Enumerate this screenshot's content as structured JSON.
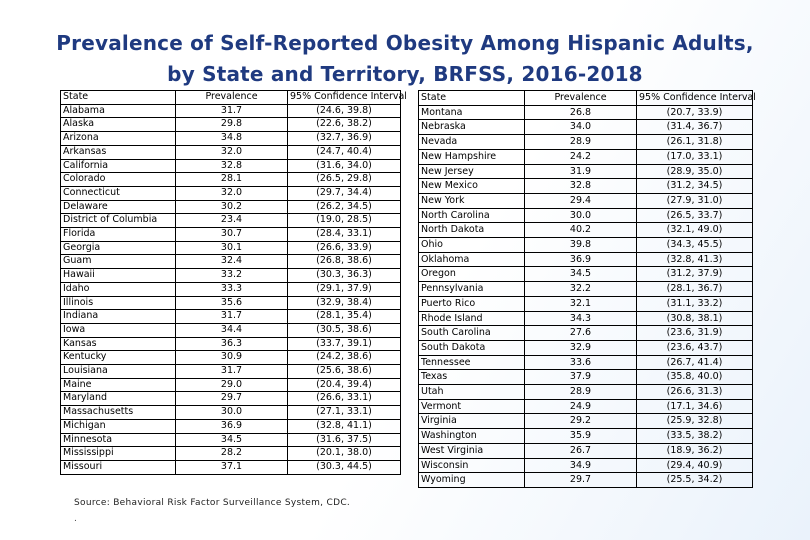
{
  "title": {
    "line1": "Prevalence of Self-Reported Obesity Among Hispanic Adults,",
    "line2": "by State and Territory, BRFSS, 2016-2018"
  },
  "columns": {
    "state": "State",
    "prevalence": "Prevalence",
    "ci": "95% Confidence Interval"
  },
  "left_rows": [
    {
      "state": "Alabama",
      "prevalence": "31.7",
      "ci": "(24.6, 39.8)"
    },
    {
      "state": "Alaska",
      "prevalence": "29.8",
      "ci": "(22.6, 38.2)"
    },
    {
      "state": "Arizona",
      "prevalence": "34.8",
      "ci": "(32.7, 36.9)"
    },
    {
      "state": "Arkansas",
      "prevalence": "32.0",
      "ci": "(24.7, 40.4)"
    },
    {
      "state": "California",
      "prevalence": "32.8",
      "ci": "(31.6, 34.0)"
    },
    {
      "state": "Colorado",
      "prevalence": "28.1",
      "ci": "(26.5, 29.8)"
    },
    {
      "state": "Connecticut",
      "prevalence": "32.0",
      "ci": "(29.7, 34.4)"
    },
    {
      "state": "Delaware",
      "prevalence": "30.2",
      "ci": "(26.2, 34.5)"
    },
    {
      "state": "District of Columbia",
      "prevalence": "23.4",
      "ci": "(19.0, 28.5)"
    },
    {
      "state": "Florida",
      "prevalence": "30.7",
      "ci": "(28.4, 33.1)"
    },
    {
      "state": "Georgia",
      "prevalence": "30.1",
      "ci": "(26.6, 33.9)"
    },
    {
      "state": "Guam",
      "prevalence": "32.4",
      "ci": "(26.8, 38.6)"
    },
    {
      "state": "Hawaii",
      "prevalence": "33.2",
      "ci": "(30.3, 36.3)"
    },
    {
      "state": "Idaho",
      "prevalence": "33.3",
      "ci": "(29.1, 37.9)"
    },
    {
      "state": "Illinois",
      "prevalence": "35.6",
      "ci": "(32.9, 38.4)"
    },
    {
      "state": "Indiana",
      "prevalence": "31.7",
      "ci": "(28.1, 35.4)"
    },
    {
      "state": "Iowa",
      "prevalence": "34.4",
      "ci": "(30.5, 38.6)"
    },
    {
      "state": "Kansas",
      "prevalence": "36.3",
      "ci": "(33.7, 39.1)"
    },
    {
      "state": "Kentucky",
      "prevalence": "30.9",
      "ci": "(24.2, 38.6)"
    },
    {
      "state": "Louisiana",
      "prevalence": "31.7",
      "ci": "(25.6, 38.6)"
    },
    {
      "state": "Maine",
      "prevalence": "29.0",
      "ci": "(20.4, 39.4)"
    },
    {
      "state": "Maryland",
      "prevalence": "29.7",
      "ci": "(26.6, 33.1)"
    },
    {
      "state": "Massachusetts",
      "prevalence": "30.0",
      "ci": "(27.1, 33.1)"
    },
    {
      "state": "Michigan",
      "prevalence": "36.9",
      "ci": "(32.8, 41.1)"
    },
    {
      "state": "Minnesota",
      "prevalence": "34.5",
      "ci": "(31.6, 37.5)"
    },
    {
      "state": "Mississippi",
      "prevalence": "28.2",
      "ci": "(20.1, 38.0)"
    },
    {
      "state": "Missouri",
      "prevalence": "37.1",
      "ci": "(30.3, 44.5)"
    }
  ],
  "right_rows": [
    {
      "state": "Montana",
      "prevalence": "26.8",
      "ci": "(20.7, 33.9)"
    },
    {
      "state": "Nebraska",
      "prevalence": "34.0",
      "ci": "(31.4, 36.7)"
    },
    {
      "state": "Nevada",
      "prevalence": "28.9",
      "ci": "(26.1, 31.8)"
    },
    {
      "state": "New Hampshire",
      "prevalence": "24.2",
      "ci": "(17.0, 33.1)"
    },
    {
      "state": "New Jersey",
      "prevalence": "31.9",
      "ci": "(28.9, 35.0)"
    },
    {
      "state": "New Mexico",
      "prevalence": "32.8",
      "ci": "(31.2, 34.5)"
    },
    {
      "state": "New York",
      "prevalence": "29.4",
      "ci": "(27.9, 31.0)"
    },
    {
      "state": "North Carolina",
      "prevalence": "30.0",
      "ci": "(26.5, 33.7)"
    },
    {
      "state": "North Dakota",
      "prevalence": "40.2",
      "ci": "(32.1, 49.0)"
    },
    {
      "state": "Ohio",
      "prevalence": "39.8",
      "ci": "(34.3, 45.5)"
    },
    {
      "state": "Oklahoma",
      "prevalence": "36.9",
      "ci": "(32.8, 41.3)"
    },
    {
      "state": "Oregon",
      "prevalence": "34.5",
      "ci": "(31.2, 37.9)"
    },
    {
      "state": "Pennsylvania",
      "prevalence": "32.2",
      "ci": "(28.1, 36.7)"
    },
    {
      "state": "Puerto Rico",
      "prevalence": "32.1",
      "ci": "(31.1, 33.2)"
    },
    {
      "state": "Rhode Island",
      "prevalence": "34.3",
      "ci": "(30.8, 38.1)"
    },
    {
      "state": "South Carolina",
      "prevalence": "27.6",
      "ci": "(23.6, 31.9)"
    },
    {
      "state": "South Dakota",
      "prevalence": "32.9",
      "ci": "(23.6, 43.7)"
    },
    {
      "state": "Tennessee",
      "prevalence": "33.6",
      "ci": "(26.7, 41.4)"
    },
    {
      "state": "Texas",
      "prevalence": "37.9",
      "ci": "(35.8, 40.0)"
    },
    {
      "state": "Utah",
      "prevalence": "28.9",
      "ci": "(26.6, 31.3)"
    },
    {
      "state": "Vermont",
      "prevalence": "24.9",
      "ci": "(17.1, 34.6)"
    },
    {
      "state": "Virginia",
      "prevalence": "29.2",
      "ci": "(25.9, 32.8)"
    },
    {
      "state": "Washington",
      "prevalence": "35.9",
      "ci": "(33.5, 38.2)"
    },
    {
      "state": "West Virginia",
      "prevalence": "26.7",
      "ci": "(18.9, 36.2)"
    },
    {
      "state": "Wisconsin",
      "prevalence": "34.9",
      "ci": "(29.4, 40.9)"
    },
    {
      "state": "Wyoming",
      "prevalence": "29.7",
      "ci": "(25.5, 34.2)"
    }
  ],
  "source": "Source: Behavioral Risk Factor Surveillance System, CDC.",
  "footnote_mark": "."
}
